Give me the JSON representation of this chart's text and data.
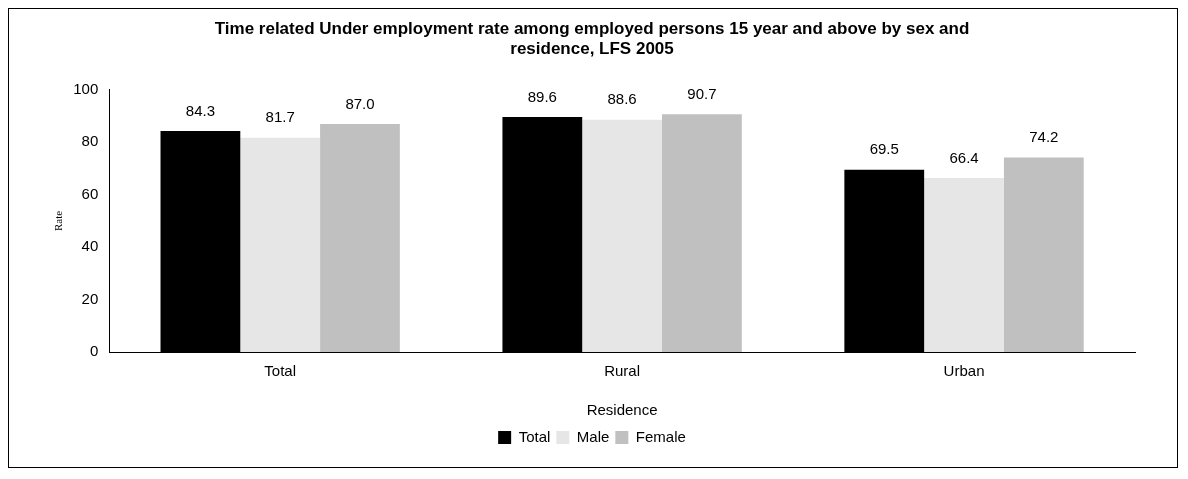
{
  "chart_data": {
    "type": "bar",
    "title": "Time related Under employment rate among employed persons 15 year and above by sex and residence, LFS 2005",
    "xlabel": "Residence",
    "ylabel": "Rate",
    "categories": [
      "Total",
      "Rural",
      "Urban"
    ],
    "series": [
      {
        "name": "Total",
        "color": "#000000",
        "values": [
          84.3,
          89.6,
          69.5
        ],
        "value_labels": [
          "84.3",
          "89.6",
          "69.5"
        ]
      },
      {
        "name": "Male",
        "color": "#e6e6e6",
        "values": [
          81.7,
          88.6,
          66.4
        ],
        "value_labels": [
          "81.7",
          "88.6",
          "66.4"
        ]
      },
      {
        "name": "Female",
        "color": "#c0c0c0",
        "values": [
          87.0,
          90.7,
          74.2
        ],
        "value_labels": [
          "87.0",
          "90.7",
          "74.2"
        ]
      }
    ],
    "ylim": [
      0,
      100
    ],
    "yticks": [
      0,
      20,
      40,
      60,
      80,
      100
    ],
    "grid": false,
    "legend": "bottom"
  }
}
